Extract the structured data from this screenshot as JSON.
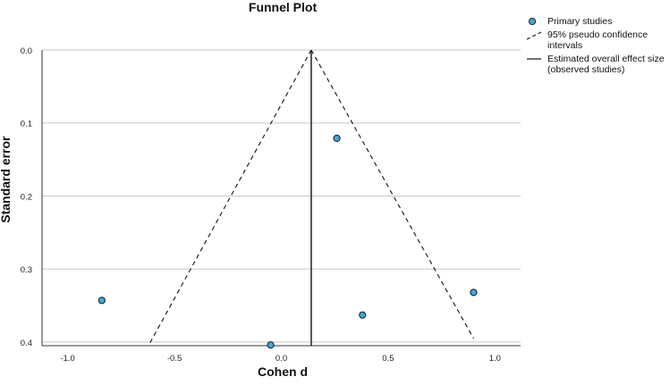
{
  "chart_data": {
    "type": "scatter",
    "title": "Funnel Plot",
    "xlabel": "Cohen d",
    "ylabel": "Standard error",
    "xlim": [
      -1.12,
      1.12
    ],
    "ylim": [
      0.0,
      0.405
    ],
    "y_inverted": true,
    "xticks": [
      "-1.0",
      "-0.5",
      "0.0",
      "0.5",
      "1.0"
    ],
    "xtick_values": [
      -1.0,
      -0.5,
      0.0,
      0.5,
      1.0
    ],
    "yticks": [
      "0.0",
      "0.1",
      "0.2",
      "0.3",
      "0.4"
    ],
    "ytick_values": [
      0.0,
      0.1,
      0.2,
      0.3,
      0.4
    ],
    "grid": "horizontal",
    "series": [
      {
        "name": "Primary studies",
        "kind": "points",
        "color": "#41a6dc",
        "points": [
          {
            "x": 0.26,
            "y": 0.121
          },
          {
            "x": -0.84,
            "y": 0.343
          },
          {
            "x": -0.05,
            "y": 0.404
          },
          {
            "x": 0.38,
            "y": 0.363
          },
          {
            "x": 0.9,
            "y": 0.332
          }
        ]
      },
      {
        "name": "95% pseudo confidence intervals",
        "kind": "dashed-line",
        "color": "#222222",
        "lines": [
          [
            {
              "x": 0.14,
              "y": 0.0
            },
            {
              "x": -0.62,
              "y": 0.404
            }
          ],
          [
            {
              "x": 0.14,
              "y": 0.0
            },
            {
              "x": 0.9,
              "y": 0.395
            }
          ]
        ]
      },
      {
        "name": "Estimated overall effect size (observed studies)",
        "kind": "vertical-line",
        "color": "#111111",
        "x": 0.14
      }
    ],
    "legend": {
      "position": "right",
      "items": [
        "Primary studies",
        "95% pseudo confidence intervals",
        "Estimated overall effect size (observed studies)"
      ]
    }
  }
}
